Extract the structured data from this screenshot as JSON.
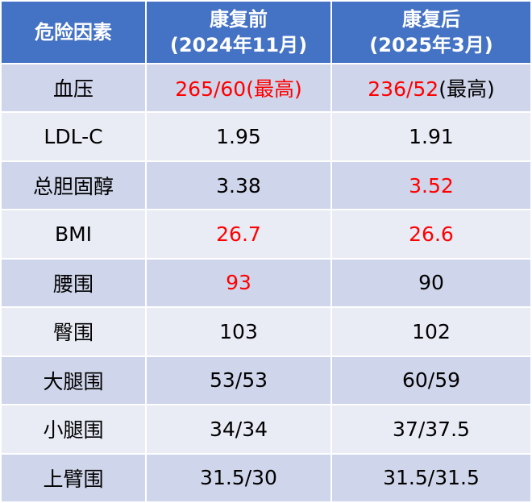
{
  "colors": {
    "header_bg": "#4472c4",
    "header_text": "#ffffff",
    "row_odd_bg": "#cfd5ea",
    "row_even_bg": "#e9ebf5",
    "highlight_text": "#ff0000"
  },
  "header": {
    "col0": "危险因素",
    "col1_line1": "康复前",
    "col1_line2": "(2024年11月)",
    "col2_line1": "康复后",
    "col2_line2": "(2025年3月)"
  },
  "rows": [
    {
      "factor": "血压",
      "before": "265/60",
      "before_suffix": "(最高)",
      "after": "236/52",
      "after_suffix": "(最高)"
    },
    {
      "factor": "LDL-C",
      "before": "1.95",
      "after": "1.91"
    },
    {
      "factor": "总胆固醇",
      "before": "3.38",
      "after": "3.52"
    },
    {
      "factor": "BMI",
      "before": "26.7",
      "after": "26.6"
    },
    {
      "factor": "腰围",
      "before": "93",
      "after": "90"
    },
    {
      "factor": "臀围",
      "before": "103",
      "after": "102"
    },
    {
      "factor": "大腿围",
      "before": "53/53",
      "after": "60/59"
    },
    {
      "factor": "小腿围",
      "before": "34/34",
      "after": "37/37.5"
    },
    {
      "factor": "上臂围",
      "before": "31.5/30",
      "after": "31.5/31.5"
    }
  ]
}
